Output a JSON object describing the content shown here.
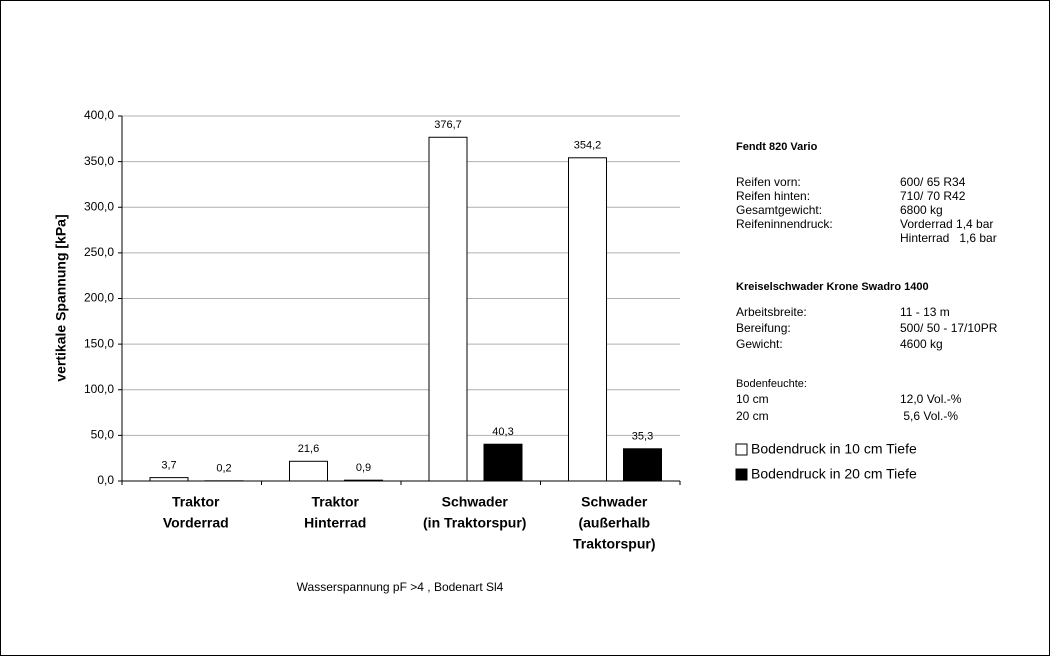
{
  "chart_data": {
    "type": "bar",
    "ylabel": "vertikale Spannung [kPa]",
    "xlabel": "Wasserspannung pF >4 , Bodenart Sl4",
    "categories": [
      [
        "Traktor",
        "Vorderrad"
      ],
      [
        "Traktor",
        "Hinterrad"
      ],
      [
        "Schwader",
        "(in Traktorspur)"
      ],
      [
        "Schwader",
        "(außerhalb",
        "Traktorspur)"
      ]
    ],
    "series": [
      {
        "name": "Bodendruck in 10 cm Tiefe",
        "color": "#ffffff",
        "values": [
          3.7,
          21.6,
          376.7,
          354.2
        ],
        "value_labels": [
          "3,7",
          "21,6",
          "376,7",
          "354,2"
        ]
      },
      {
        "name": "Bodendruck in 20 cm Tiefe",
        "color": "#000000",
        "values": [
          0.2,
          0.9,
          40.3,
          35.3
        ],
        "value_labels": [
          "0,2",
          "0,9",
          "40,3",
          "35,3"
        ]
      }
    ],
    "ylim": [
      0,
      400
    ],
    "yticks": [
      {
        "value": 0,
        "label": "0,0"
      },
      {
        "value": 50,
        "label": "50,0"
      },
      {
        "value": 100,
        "label": "100,0"
      },
      {
        "value": 150,
        "label": "150,0"
      },
      {
        "value": 200,
        "label": "200,0"
      },
      {
        "value": 250,
        "label": "250,0"
      },
      {
        "value": 300,
        "label": "300,0"
      },
      {
        "value": 350,
        "label": "350,0"
      },
      {
        "value": 400,
        "label": "400,0"
      }
    ],
    "grid": true,
    "annotations": [
      {
        "title": "Fendt 820 Vario",
        "rows": [
          [
            "Reifen vorn:",
            "600/ 65 R34"
          ],
          [
            "Reifen hinten:",
            "710/ 70 R42"
          ],
          [
            "Gesamtgewicht:",
            "6800 kg"
          ],
          [
            "Reifeninnendruck:",
            "Vorderrad 1,4 bar",
            "Hinterrad   1,6 bar"
          ]
        ]
      },
      {
        "title": "Kreiselschwader Krone Swadro 1400",
        "rows": [
          [
            "Arbeitsbreite:",
            "11 - 13 m"
          ],
          [
            "Bereifung:",
            "500/ 50 - 17/10PR"
          ],
          [
            "Gewicht:",
            "4600 kg"
          ]
        ]
      },
      {
        "title": "Bodenfeuchte:",
        "rows": [
          [
            "10 cm",
            "12,0 Vol.-%"
          ],
          [
            "20 cm",
            " 5,6 Vol.-%"
          ]
        ]
      }
    ]
  }
}
